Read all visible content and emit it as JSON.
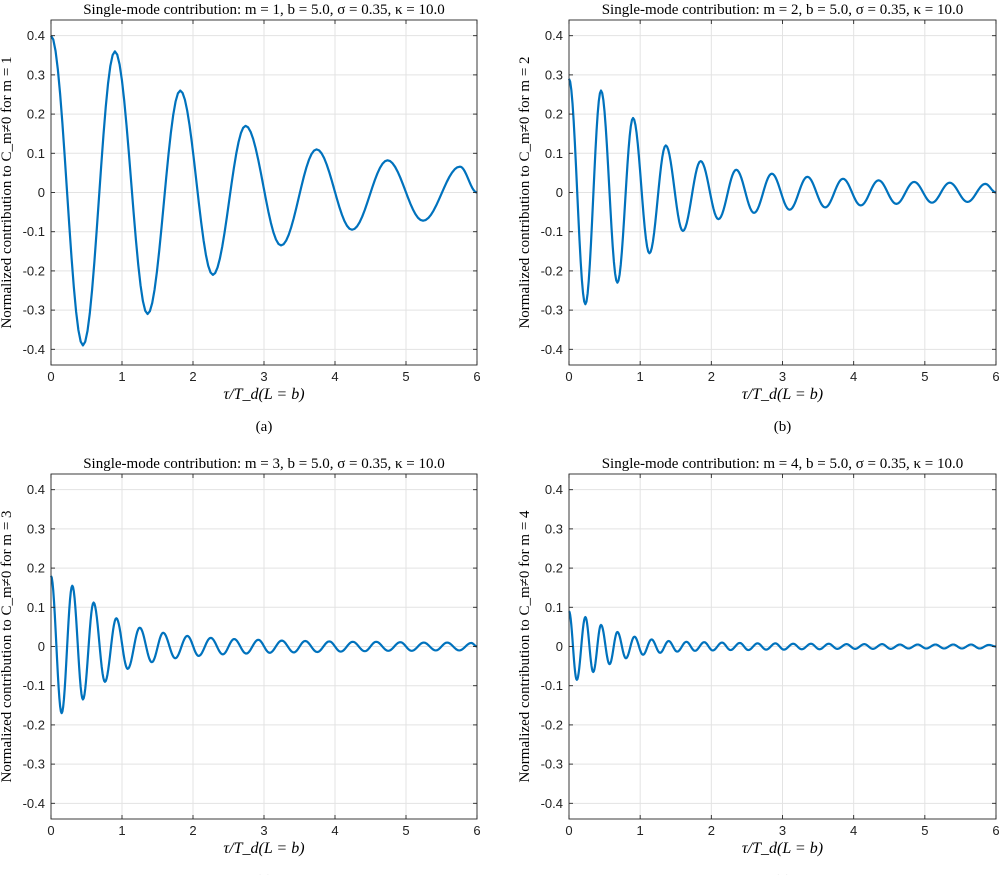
{
  "chart_data": [
    {
      "type": "line",
      "panel_label": "(a)",
      "title": "Single-mode contribution: m = 1, b = 5.0, σ = 0.35, κ = 10.0",
      "xlabel": "τ/T_d(L = b)",
      "ylabel": "Normalized contribution to C_m≠0 for m = 1",
      "xlim": [
        0,
        6
      ],
      "ylim": [
        -0.44,
        0.44
      ],
      "xticks": [
        0,
        1,
        2,
        3,
        4,
        5,
        6
      ],
      "yticks": [
        -0.4,
        -0.3,
        -0.2,
        -0.1,
        0,
        0.1,
        0.2,
        0.3,
        0.4
      ],
      "ytick_labels": [
        "-0.4",
        "-0.3",
        "-0.2",
        "-0.1",
        "0",
        "0.1",
        "0.2",
        "0.3",
        "0.4"
      ],
      "grid": true,
      "color": "#0072BD",
      "series": [
        {
          "x": [
            0,
            0.45,
            0.9,
            1.36,
            1.82,
            2.28,
            2.74,
            3.24,
            3.74,
            4.24,
            4.74,
            5.24,
            5.76,
            6.0
          ],
          "y": [
            0.4,
            -0.39,
            0.36,
            -0.31,
            0.26,
            -0.21,
            0.17,
            -0.135,
            0.11,
            -0.095,
            0.082,
            -0.072,
            0.066,
            0.0
          ]
        }
      ]
    },
    {
      "type": "line",
      "panel_label": "(b)",
      "title": "Single-mode contribution: m = 2, b = 5.0, σ = 0.35, κ = 10.0",
      "xlabel": "τ/T_d(L = b)",
      "ylabel": "Normalized contribution to C_m≠0 for m = 2",
      "xlim": [
        0,
        6
      ],
      "ylim": [
        -0.44,
        0.44
      ],
      "xticks": [
        0,
        1,
        2,
        3,
        4,
        5,
        6
      ],
      "yticks": [
        -0.4,
        -0.3,
        -0.2,
        -0.1,
        0,
        0.1,
        0.2,
        0.3,
        0.4
      ],
      "ytick_labels": [
        "-0.4",
        "-0.3",
        "-0.2",
        "-0.1",
        "0",
        "0.1",
        "0.2",
        "0.3",
        "0.4"
      ],
      "grid": true,
      "color": "#0072BD",
      "series": [
        {
          "x": [
            0,
            0.23,
            0.45,
            0.68,
            0.9,
            1.13,
            1.36,
            1.6,
            1.85,
            2.1,
            2.35,
            2.6,
            2.85,
            3.1,
            3.35,
            3.6,
            3.85,
            4.1,
            4.35,
            4.6,
            4.85,
            5.1,
            5.35,
            5.6,
            5.85,
            6.0
          ],
          "y": [
            0.29,
            -0.285,
            0.26,
            -0.23,
            0.19,
            -0.155,
            0.12,
            -0.098,
            0.08,
            -0.068,
            0.058,
            -0.052,
            0.048,
            -0.044,
            0.04,
            -0.038,
            0.035,
            -0.033,
            0.031,
            -0.029,
            0.027,
            -0.026,
            0.025,
            -0.024,
            0.022,
            0.0
          ]
        }
      ]
    },
    {
      "type": "line",
      "panel_label": "(c)",
      "title": "Single-mode contribution: m = 3, b = 5.0, σ = 0.35, κ = 10.0",
      "xlabel": "τ/T_d(L = b)",
      "ylabel": "Normalized contribution to C_m≠0 for m = 3",
      "xlim": [
        0,
        6
      ],
      "ylim": [
        -0.44,
        0.44
      ],
      "xticks": [
        0,
        1,
        2,
        3,
        4,
        5,
        6
      ],
      "yticks": [
        -0.4,
        -0.3,
        -0.2,
        -0.1,
        0,
        0.1,
        0.2,
        0.3,
        0.4
      ],
      "ytick_labels": [
        "-0.4",
        "-0.3",
        "-0.2",
        "-0.1",
        "0",
        "0.1",
        "0.2",
        "0.3",
        "0.4"
      ],
      "grid": true,
      "color": "#0072BD",
      "series": [
        {
          "x": [
            0,
            0.15,
            0.3,
            0.45,
            0.6,
            0.76,
            0.92,
            1.08,
            1.25,
            1.42,
            1.58,
            1.75,
            1.92,
            2.08,
            2.25,
            2.42,
            2.58,
            2.75,
            2.92,
            3.08,
            3.25,
            3.42,
            3.58,
            3.75,
            3.92,
            4.08,
            4.25,
            4.42,
            4.58,
            4.75,
            4.92,
            5.08,
            5.25,
            5.42,
            5.58,
            5.75,
            5.92,
            6.0
          ],
          "y": [
            0.18,
            -0.17,
            0.155,
            -0.135,
            0.112,
            -0.09,
            0.072,
            -0.057,
            0.048,
            -0.04,
            0.035,
            -0.03,
            0.027,
            -0.024,
            0.022,
            -0.02,
            0.019,
            -0.018,
            0.017,
            -0.016,
            0.015,
            -0.015,
            0.014,
            -0.014,
            0.013,
            -0.013,
            0.012,
            -0.012,
            0.012,
            -0.011,
            0.011,
            -0.011,
            0.01,
            -0.01,
            0.01,
            -0.01,
            0.009,
            0.0
          ]
        }
      ]
    },
    {
      "type": "line",
      "panel_label": "(d)",
      "title": "Single-mode contribution: m = 4, b = 5.0, σ = 0.35, κ = 10.0",
      "xlabel": "τ/T_d(L = b)",
      "ylabel": "Normalized contribution to C_m≠0 for m = 4",
      "xlim": [
        0,
        6
      ],
      "ylim": [
        -0.44,
        0.44
      ],
      "xticks": [
        0,
        1,
        2,
        3,
        4,
        5,
        6
      ],
      "yticks": [
        -0.4,
        -0.3,
        -0.2,
        -0.1,
        0,
        0.1,
        0.2,
        0.3,
        0.4
      ],
      "ytick_labels": [
        "-0.4",
        "-0.3",
        "-0.2",
        "-0.1",
        "0",
        "0.1",
        "0.2",
        "0.3",
        "0.4"
      ],
      "grid": true,
      "color": "#0072BD",
      "series": [
        {
          "x": [
            0,
            0.11,
            0.23,
            0.34,
            0.45,
            0.57,
            0.68,
            0.8,
            0.92,
            1.04,
            1.16,
            1.28,
            1.4,
            1.52,
            1.65,
            1.77,
            1.9,
            2.02,
            2.15,
            2.27,
            2.4,
            2.52,
            2.65,
            2.77,
            2.9,
            3.02,
            3.15,
            3.27,
            3.4,
            3.52,
            3.65,
            3.77,
            3.9,
            4.02,
            4.15,
            4.27,
            4.4,
            4.52,
            4.65,
            4.77,
            4.9,
            5.02,
            5.15,
            5.27,
            5.4,
            5.52,
            5.65,
            5.77,
            5.9,
            6.0
          ],
          "y": [
            0.09,
            -0.085,
            0.075,
            -0.065,
            0.055,
            -0.045,
            0.037,
            -0.03,
            0.025,
            -0.021,
            0.018,
            -0.016,
            0.014,
            -0.013,
            0.012,
            -0.011,
            0.011,
            -0.01,
            0.01,
            -0.009,
            0.009,
            -0.009,
            0.008,
            -0.008,
            0.008,
            -0.008,
            0.007,
            -0.007,
            0.007,
            -0.007,
            0.007,
            -0.006,
            0.006,
            -0.006,
            0.006,
            -0.006,
            0.006,
            -0.006,
            0.005,
            -0.005,
            0.005,
            -0.005,
            0.005,
            -0.005,
            0.005,
            -0.005,
            0.005,
            -0.005,
            0.004,
            0.0
          ]
        }
      ]
    }
  ]
}
